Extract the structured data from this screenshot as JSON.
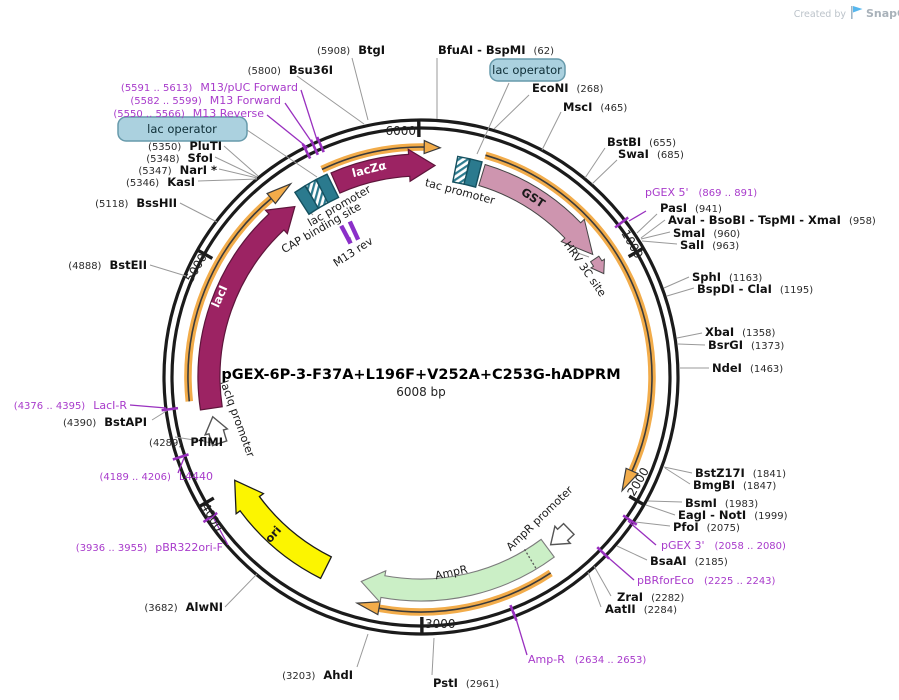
{
  "credit": {
    "prefix": "Created by",
    "brand": "SnapGene"
  },
  "plasmid": {
    "title": "pGEX-6P-3-F37A+L196F+V252A+C253G-hADPRM",
    "length": "6008 bp"
  },
  "ticks": {
    "k1000": "1000",
    "k2000": "2000",
    "k3000": "3000",
    "k4000": "4000",
    "k5000": "5000",
    "k6000": "6000"
  },
  "features": {
    "laczalpha": {
      "label": "lacZα",
      "color": "#9C2363"
    },
    "tac_promoter": {
      "label": "tac promoter",
      "color": "#2B7A8E"
    },
    "gst": {
      "label": "GST",
      "color": "#CE95AF"
    },
    "hrv_3c_site": {
      "label": "HRV 3C site",
      "color": "#CE95AF"
    },
    "laci": {
      "label": "lacI",
      "color": "#9C2363"
    },
    "laciq_promoter": {
      "label": "lacIq promoter",
      "color": "#ffffff"
    },
    "cap_binding": {
      "label": "CAP binding site",
      "color": "#2B7A8E"
    },
    "lac_promoter": {
      "label": "lac promoter",
      "color": "#2B7A8E"
    },
    "lac_operator": {
      "label": "lac operator",
      "color": "#2B7A8E"
    },
    "m13_rev": {
      "label": "M13 rev",
      "color": "#8B2FC9"
    },
    "ori": {
      "label": "ori",
      "color": "#FCF500"
    },
    "ampr": {
      "label": "AmpR",
      "color": "#CBEFC6"
    },
    "ampr_promoter": {
      "label": "AmpR promoter",
      "color": "#ffffff"
    }
  },
  "sites": {
    "btgi": {
      "name": "BtgI",
      "pos": "(5908)"
    },
    "bsu36i": {
      "name": "Bsu36I",
      "pos": "(5800)"
    },
    "bfuai_bspmi": {
      "name": "BfuAI - BspMI",
      "pos": "(62)"
    },
    "econi": {
      "name": "EcoNI",
      "pos": "(268)"
    },
    "msci": {
      "name": "MscI",
      "pos": "(465)"
    },
    "bstbi": {
      "name": "BstBI",
      "pos": "(655)"
    },
    "swai": {
      "name": "SwaI",
      "pos": "(685)"
    },
    "pasi": {
      "name": "PasI",
      "pos": "(941)"
    },
    "avai_cluster": {
      "name": "AvaI - BsoBI - TspMI - XmaI",
      "pos": "(958)"
    },
    "smai": {
      "name": "SmaI",
      "pos": "(960)"
    },
    "sali": {
      "name": "SalI",
      "pos": "(963)"
    },
    "sphi": {
      "name": "SphI",
      "pos": "(1163)"
    },
    "bspdi_clai": {
      "name": "BspDI - ClaI",
      "pos": "(1195)"
    },
    "xbai": {
      "name": "XbaI",
      "pos": "(1358)"
    },
    "bsrgi": {
      "name": "BsrGI",
      "pos": "(1373)"
    },
    "ndei": {
      "name": "NdeI",
      "pos": "(1463)"
    },
    "bstz17i": {
      "name": "BstZ17I",
      "pos": "(1841)"
    },
    "bmgbi": {
      "name": "BmgBI",
      "pos": "(1847)"
    },
    "bsmi": {
      "name": "BsmI",
      "pos": "(1983)"
    },
    "eagi_noti": {
      "name": "EagI - NotI",
      "pos": "(1999)"
    },
    "pfoi": {
      "name": "PfoI",
      "pos": "(2075)"
    },
    "bsaai": {
      "name": "BsaAI",
      "pos": "(2185)"
    },
    "zrai": {
      "name": "ZraI",
      "pos": "(2282)"
    },
    "aatii": {
      "name": "AatII",
      "pos": "(2284)"
    },
    "psti": {
      "name": "PstI",
      "pos": "(2961)"
    },
    "ahdi": {
      "name": "AhdI",
      "pos": "(3203)"
    },
    "alwni": {
      "name": "AlwNI",
      "pos": "(3682)"
    },
    "pflmi": {
      "name": "PflMI",
      "pos": "(4289)"
    },
    "bstapi": {
      "name": "BstAPI",
      "pos": "(4390)"
    },
    "bsteii": {
      "name": "BstEII",
      "pos": "(4888)"
    },
    "bsshii": {
      "name": "BssHII",
      "pos": "(5118)"
    },
    "kasi": {
      "name": "KasI",
      "pos": "(5346)"
    },
    "nari": {
      "name": "NarI *",
      "pos": "(5347)"
    },
    "sfoi": {
      "name": "SfoI",
      "pos": "(5348)"
    },
    "pluti": {
      "name": "PluTI",
      "pos": "(5350)"
    }
  },
  "primers": {
    "m13puc_f": {
      "name": "M13/pUC Forward",
      "range": "(5591 .. 5613)"
    },
    "m13_f": {
      "name": "M13 Forward",
      "range": "(5582 .. 5599)"
    },
    "m13_r": {
      "name": "M13 Reverse",
      "range": "(5550 .. 5566)"
    },
    "pgex5": {
      "name": "pGEX 5'",
      "range": "(869 .. 891)"
    },
    "pgex3": {
      "name": "pGEX 3'",
      "range": "(2058 .. 2080)"
    },
    "pbrforeco": {
      "name": "pBRforEco",
      "range": "(2225 .. 2243)"
    },
    "ampr_primer": {
      "name": "Amp-R",
      "range": "(2634 .. 2653)"
    },
    "pbr322ori_f": {
      "name": "pBR322ori-F",
      "range": "(3936 .. 3955)"
    },
    "l4440": {
      "name": "L4440",
      "range": "(4189 .. 4206)"
    },
    "laci_r": {
      "name": "LacI-R",
      "range": "(4376 .. 4395)"
    }
  },
  "colors": {
    "ring": "#1b1b1b",
    "maroon": "#9C2363",
    "maroon_border": "#5E153B",
    "pink": "#CE95AF",
    "pink_border": "#454545",
    "orange_orf": "#F2AC4A",
    "orf_line": "#3b3b3b",
    "green": "#CBEFC6",
    "green_border": "#7c7c7c",
    "yellow": "#FCF500",
    "yellow_border": "#1b1b1b",
    "teal_box": "#2B7A8E",
    "teal_border": "#14505F",
    "operator_label_bg": "#ABD1DF",
    "operator_label_border": "#679AAB",
    "primer_purple": "#A83BCB",
    "primer_tick": "#9930BF",
    "leader_gray": "#999999"
  }
}
